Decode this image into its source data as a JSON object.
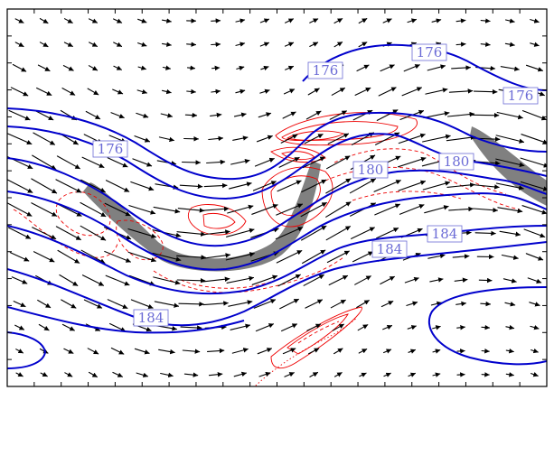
{
  "figure": {
    "colors": {
      "contour": "#0000cc",
      "label_text": "#6b6bd6",
      "anomaly": "#ee0000",
      "shading": "#808080",
      "arrow": "#000000",
      "frame": "#000000"
    },
    "contour_labels": [
      "176",
      "176",
      "176",
      "180",
      "180",
      "184",
      "184",
      "184"
    ]
  }
}
